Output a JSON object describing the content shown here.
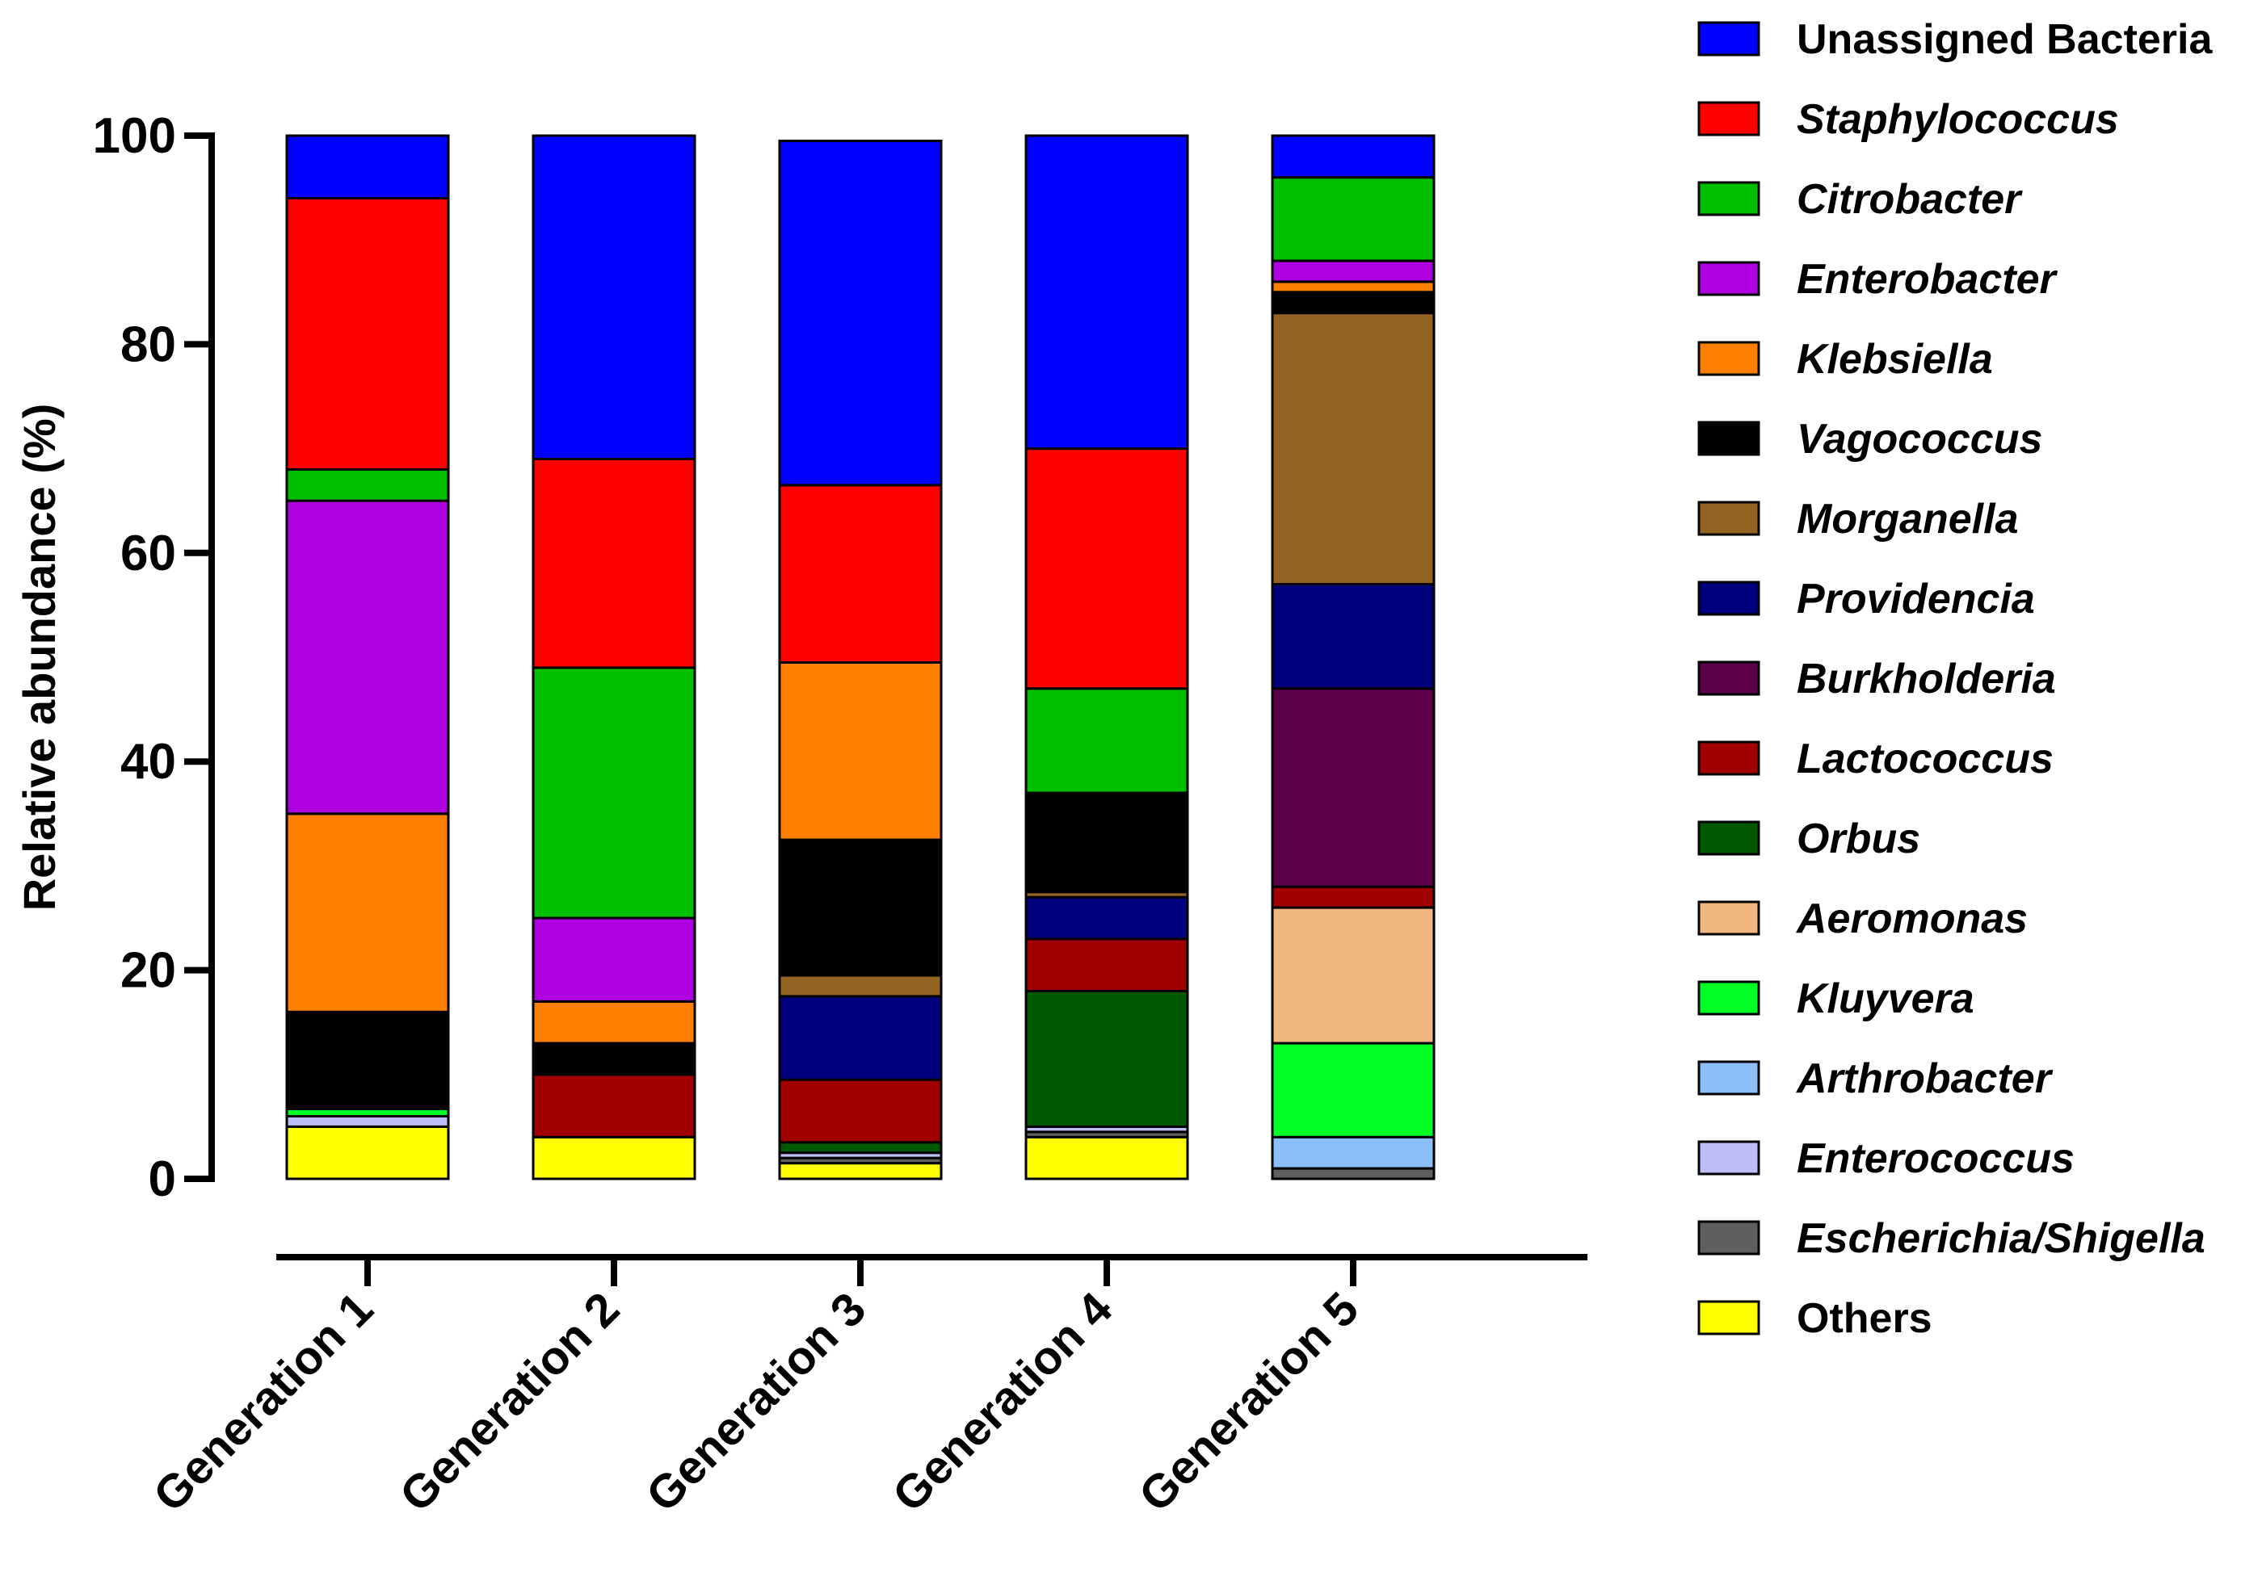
{
  "chart_data": {
    "type": "bar",
    "stacked": true,
    "title": "",
    "xlabel": "",
    "ylabel": "Relative abundance (%)",
    "ylim": [
      0,
      100
    ],
    "yticks": [
      0,
      20,
      40,
      60,
      80,
      100
    ],
    "ytick_labels": [
      "0",
      "20",
      "40",
      "60",
      "80",
      "100"
    ],
    "categories": [
      "Generation 1",
      "Generation 2",
      "Generation 3",
      "Generation 4",
      "Generation 5"
    ],
    "legend_position": "right",
    "series": [
      {
        "name": "Others",
        "italic": false,
        "color": "#FFFF00",
        "values": [
          5,
          4,
          1.5,
          4,
          0
        ]
      },
      {
        "name": "Escherichia/Shigella",
        "italic": true,
        "color": "#5F5F5F",
        "values": [
          0,
          0,
          0.5,
          0.5,
          1
        ]
      },
      {
        "name": "Enterococcus",
        "italic": true,
        "color": "#BDBDF8",
        "values": [
          1,
          0,
          0.5,
          0.5,
          0
        ]
      },
      {
        "name": "Arthrobacter",
        "italic": true,
        "color": "#8CBEF8",
        "values": [
          0,
          0,
          0,
          0,
          3
        ]
      },
      {
        "name": "Kluyvera",
        "italic": true,
        "color": "#00FF22",
        "values": [
          0.7,
          0,
          0,
          0,
          9
        ]
      },
      {
        "name": "Aeromonas",
        "italic": true,
        "color": "#F0B880",
        "values": [
          0,
          0,
          0,
          0,
          13
        ]
      },
      {
        "name": "Orbus",
        "italic": true,
        "color": "#005900",
        "values": [
          0,
          0,
          1,
          13,
          0
        ]
      },
      {
        "name": "Lactococcus",
        "italic": true,
        "color": "#A00000",
        "values": [
          0,
          6,
          6,
          5,
          2
        ]
      },
      {
        "name": "Burkholderia",
        "italic": true,
        "color": "#5F004C",
        "values": [
          0,
          0,
          0,
          0,
          19
        ]
      },
      {
        "name": "Providencia",
        "italic": true,
        "color": "#00007F",
        "values": [
          0,
          0,
          8,
          4,
          10
        ]
      },
      {
        "name": "Morganella",
        "italic": true,
        "color": "#936322",
        "values": [
          0,
          0,
          2,
          0.5,
          26
        ]
      },
      {
        "name": "Vagococcus",
        "italic": true,
        "color": "#000000",
        "values": [
          9.3,
          3,
          13,
          9.5,
          2
        ]
      },
      {
        "name": "Klebsiella",
        "italic": true,
        "color": "#FF8000",
        "values": [
          19,
          4,
          17,
          0,
          1
        ]
      },
      {
        "name": "Enterobacter",
        "italic": true,
        "color": "#AF00E0",
        "values": [
          30,
          8,
          0,
          0,
          2
        ]
      },
      {
        "name": "Citrobacter",
        "italic": true,
        "color": "#00BF00",
        "values": [
          3,
          24,
          0,
          10,
          8
        ]
      },
      {
        "name": "Staphylococcus",
        "italic": true,
        "color": "#FF0000",
        "values": [
          26,
          20,
          17,
          23,
          0
        ]
      },
      {
        "name": "Unassigned Bacteria",
        "italic": false,
        "color": "#0000FF",
        "values": [
          6,
          31,
          33,
          30,
          4
        ]
      }
    ],
    "legend_order": [
      "Unassigned Bacteria",
      "Staphylococcus",
      "Citrobacter",
      "Enterobacter",
      "Klebsiella",
      "Vagococcus",
      "Morganella",
      "Providencia",
      "Burkholderia",
      "Lactococcus",
      "Orbus",
      "Aeromonas",
      "Kluyvera",
      "Arthrobacter",
      "Enterococcus",
      "Escherichia/Shigella",
      "Others"
    ]
  }
}
